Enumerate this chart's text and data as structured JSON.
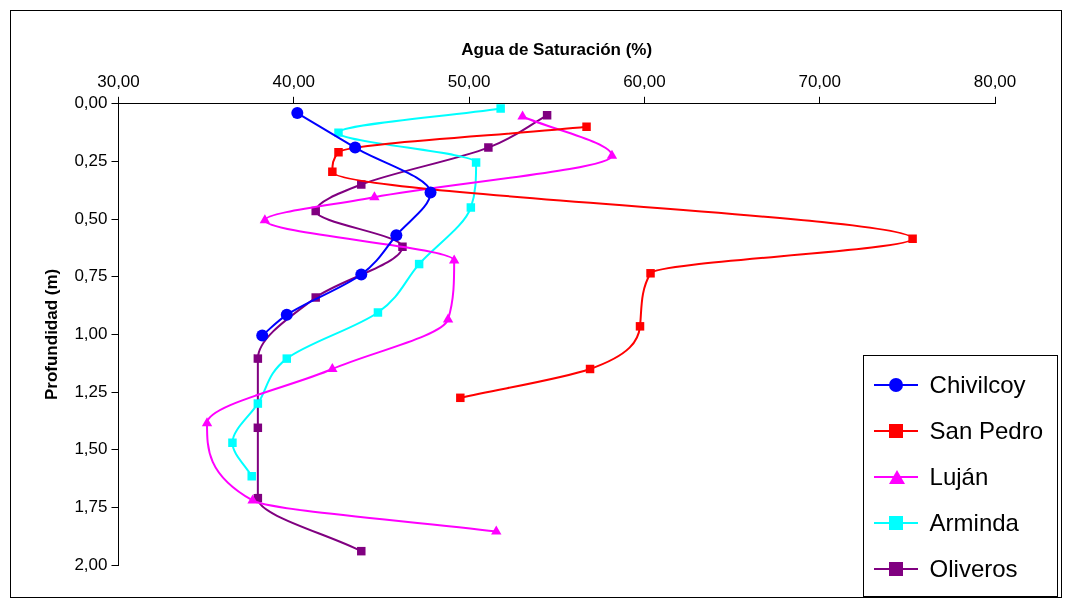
{
  "chart_data": {
    "type": "line",
    "xlabel": "Agua de Saturación (%)",
    "ylabel": "Profundidad (m)",
    "xlim": [
      30,
      80
    ],
    "xticks": [
      {
        "value": 30,
        "label": "30,00"
      },
      {
        "value": 40,
        "label": "40,00"
      },
      {
        "value": 50,
        "label": "50,00"
      },
      {
        "value": 60,
        "label": "60,00"
      },
      {
        "value": 70,
        "label": "70,00"
      },
      {
        "value": 80,
        "label": "80,00"
      }
    ],
    "ylim": [
      2,
      0
    ],
    "yticks": [
      {
        "value": 0,
        "label": "0,00"
      },
      {
        "value": 0.25,
        "label": "0,25"
      },
      {
        "value": 0.5,
        "label": "0,50"
      },
      {
        "value": 0.75,
        "label": "0,75"
      },
      {
        "value": 1,
        "label": "1,00"
      },
      {
        "value": 1.25,
        "label": "1,25"
      },
      {
        "value": 1.5,
        "label": "1,50"
      },
      {
        "value": 1.75,
        "label": "1,75"
      },
      {
        "value": 2,
        "label": "2,00"
      }
    ],
    "grid": false,
    "legend": "bottom right",
    "line_style": "solid",
    "series": [
      {
        "name": "Chivilcoy",
        "color": "#0000ff",
        "marker": "circle",
        "x": [
          40.2,
          43.5,
          47.8,
          45.85,
          43.85,
          39.6,
          38.2
        ],
        "values": [
          0.04,
          0.19,
          0.385,
          0.57,
          0.74,
          0.915,
          1.005
        ]
      },
      {
        "name": "San Pedro",
        "color": "#ff0000",
        "marker": "square",
        "x": [
          56.7,
          42.55,
          42.2,
          75.3,
          60.35,
          59.75,
          56.9,
          49.5
        ],
        "values": [
          0.1,
          0.21,
          0.295,
          0.585,
          0.735,
          0.965,
          1.15,
          1.275
        ]
      },
      {
        "name": "Luján",
        "color": "#ff00ff",
        "marker": "triangle",
        "x": [
          53.05,
          58.15,
          44.6,
          38.35,
          49.15,
          48.8,
          42.2,
          35.05,
          37.65,
          51.55
        ],
        "values": [
          0.055,
          0.225,
          0.405,
          0.505,
          0.68,
          0.935,
          1.15,
          1.385,
          1.72,
          1.855
        ]
      },
      {
        "name": "Arminda",
        "color": "#00ffff",
        "marker": "square",
        "x": [
          51.8,
          42.55,
          50.4,
          50.1,
          47.15,
          44.8,
          39.6,
          37.95,
          36.5,
          37.6
        ],
        "values": [
          0.02,
          0.125,
          0.255,
          0.45,
          0.695,
          0.905,
          1.105,
          1.3,
          1.47,
          1.615
        ]
      },
      {
        "name": "Oliveros",
        "color": "#800080",
        "marker": "square",
        "x": [
          54.45,
          51.1,
          43.85,
          41.25,
          46.2,
          41.25,
          37.95,
          37.95,
          37.95,
          43.85
        ],
        "values": [
          0.05,
          0.19,
          0.35,
          0.465,
          0.62,
          0.84,
          1.105,
          1.405,
          1.71,
          1.94
        ]
      }
    ]
  }
}
